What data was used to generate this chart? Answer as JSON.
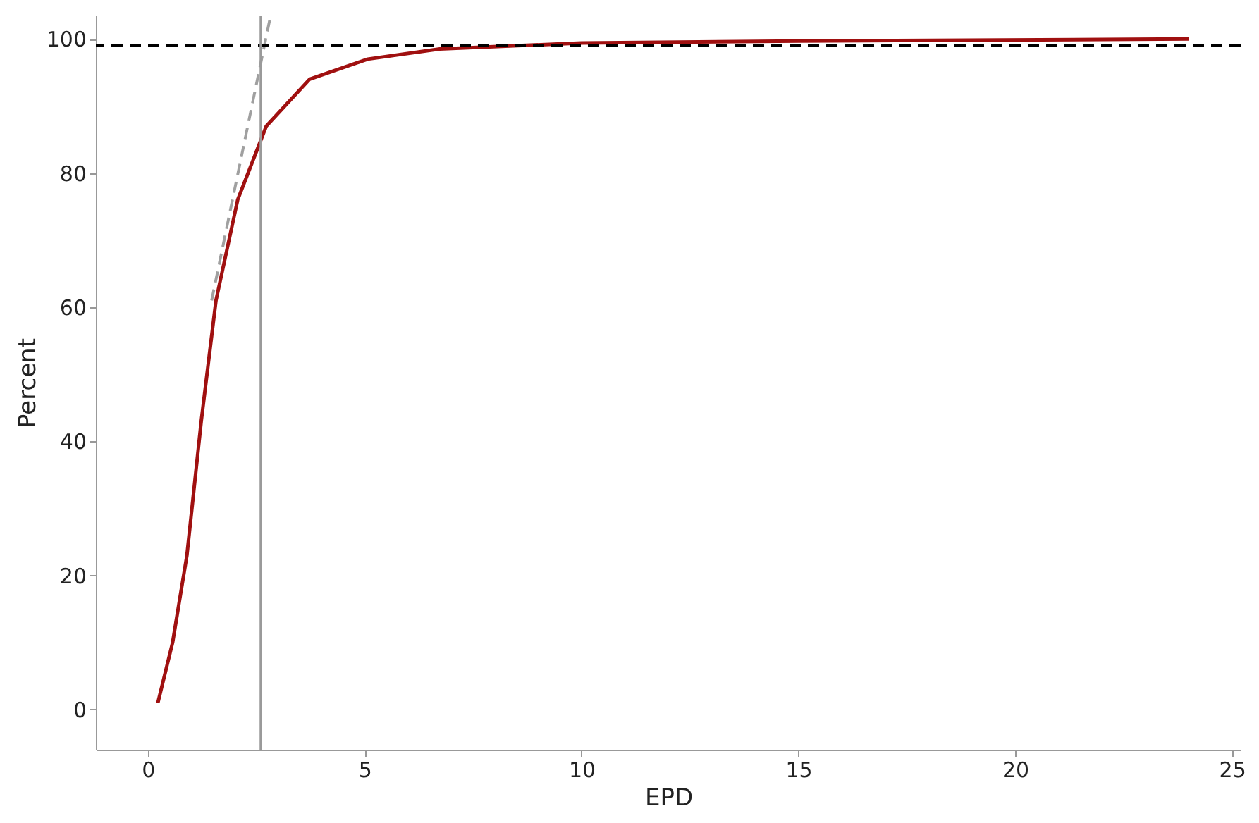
{
  "chart_data": {
    "type": "line",
    "xlabel": "EPD",
    "ylabel": "Percent",
    "xlim": [
      -1.2,
      25.2
    ],
    "xticks": [
      0,
      5,
      10,
      15,
      20,
      25
    ],
    "ylim": [
      -6,
      103.5
    ],
    "yticks": [
      0,
      20,
      40,
      60,
      80,
      100
    ],
    "marker": "none",
    "series": [
      {
        "color": "#a01010",
        "line_style": "solid",
        "x": [
          0.23,
          0.57,
          0.9,
          1.23,
          1.57,
          2.07,
          2.73,
          3.73,
          5.07,
          6.73,
          10,
          15,
          24
        ],
        "values": [
          1,
          10,
          23,
          43,
          61,
          76,
          87,
          94,
          97,
          98.5,
          99.4,
          99.7,
          100
        ]
      },
      {
        "color": "#a0a0a0",
        "line_style": "dashed",
        "x": [
          1.47,
          2.83
        ],
        "values": [
          61,
          103.5
        ]
      }
    ],
    "ref_lines": [
      {
        "axis": "y",
        "value": 99,
        "color": "#000000",
        "line_style": "dashed"
      },
      {
        "axis": "x",
        "value": 2.6,
        "color": "#9a9a9a",
        "line_style": "solid"
      }
    ]
  }
}
